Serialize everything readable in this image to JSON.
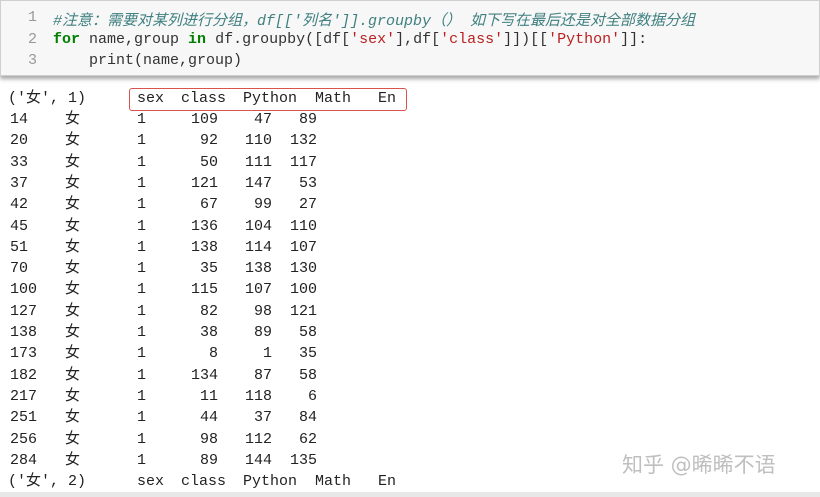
{
  "code": {
    "line_numbers": [
      "1",
      "2",
      "3"
    ],
    "line1": "#注意：需要对某列进行分组，df[['列名']].groupby（） 如下写在最后还是对全部数据分组",
    "line2": [
      {
        "t": "for",
        "c": "kw"
      },
      {
        "t": " name,group ",
        "c": ""
      },
      {
        "t": "in",
        "c": "kw"
      },
      {
        "t": " df.groupby([df[",
        "c": ""
      },
      {
        "t": "'sex'",
        "c": "st"
      },
      {
        "t": "],df[",
        "c": ""
      },
      {
        "t": "'class'",
        "c": "st"
      },
      {
        "t": "]])[[",
        "c": ""
      },
      {
        "t": "'Python'",
        "c": "st"
      },
      {
        "t": "]]:",
        "c": ""
      }
    ],
    "line3": "    print(name,group)"
  },
  "output": {
    "group1": {
      "label": "('女', 1)",
      "headers": [
        "sex",
        "class",
        "Python",
        "Math",
        "En"
      ],
      "rows": [
        [
          "14",
          "女",
          "1",
          "109",
          "47",
          "89"
        ],
        [
          "20",
          "女",
          "1",
          "92",
          "110",
          "132"
        ],
        [
          "33",
          "女",
          "1",
          "50",
          "111",
          "117"
        ],
        [
          "37",
          "女",
          "1",
          "121",
          "147",
          "53"
        ],
        [
          "42",
          "女",
          "1",
          "67",
          "99",
          "27"
        ],
        [
          "45",
          "女",
          "1",
          "136",
          "104",
          "110"
        ],
        [
          "51",
          "女",
          "1",
          "138",
          "114",
          "107"
        ],
        [
          "70",
          "女",
          "1",
          "35",
          "138",
          "130"
        ],
        [
          "100",
          "女",
          "1",
          "115",
          "107",
          "100"
        ],
        [
          "127",
          "女",
          "1",
          "82",
          "98",
          "121"
        ],
        [
          "138",
          "女",
          "1",
          "38",
          "89",
          "58"
        ],
        [
          "173",
          "女",
          "1",
          "8",
          "1",
          "35"
        ],
        [
          "182",
          "女",
          "1",
          "134",
          "87",
          "58"
        ],
        [
          "217",
          "女",
          "1",
          "11",
          "118",
          "6"
        ],
        [
          "251",
          "女",
          "1",
          "44",
          "37",
          "84"
        ],
        [
          "256",
          "女",
          "1",
          "98",
          "112",
          "62"
        ],
        [
          "284",
          "女",
          "1",
          "89",
          "144",
          "135"
        ]
      ]
    },
    "group2": {
      "label": "('女', 2)",
      "headers": [
        "sex",
        "class",
        "Python",
        "Math",
        "En"
      ]
    }
  },
  "watermark": "知乎 @晞晞不语",
  "colors": {
    "highlight_box": "#d9534f",
    "comment": "#408080",
    "keyword": "#008000",
    "string": "#BA2121"
  }
}
